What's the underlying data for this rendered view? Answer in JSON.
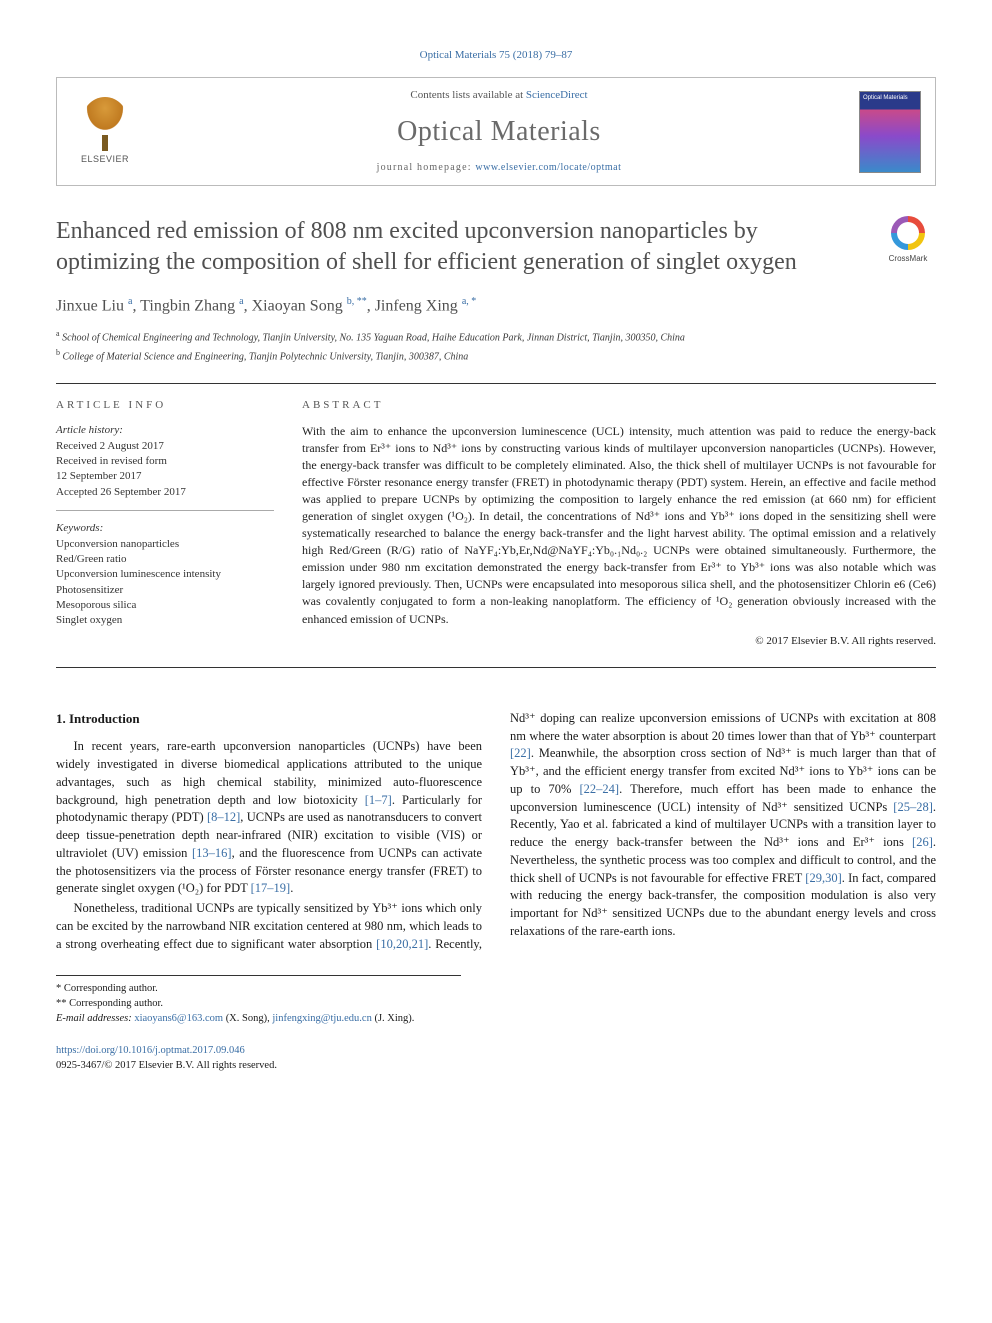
{
  "citation": "Optical Materials 75 (2018) 79–87",
  "masthead": {
    "contents_prefix": "Contents lists available at ",
    "contents_link": "ScienceDirect",
    "journal": "Optical Materials",
    "homepage_prefix": "journal homepage: ",
    "homepage_url": "www.elsevier.com/locate/optmat",
    "publisher": "ELSEVIER"
  },
  "crossmark_label": "CrossMark",
  "title": "Enhanced red emission of 808 nm excited upconversion nanoparticles by optimizing the composition of shell for efficient generation of singlet oxygen",
  "authors_html": "Jinxue Liu <sup>a</sup>, Tingbin Zhang <sup>a</sup>, Xiaoyan Song <sup>b, **</sup>, Jinfeng Xing <sup>a, *</sup>",
  "affiliations": [
    "a School of Chemical Engineering and Technology, Tianjin University, No. 135 Yaguan Road, Haihe Education Park, Jinnan District, Tianjin, 300350, China",
    "b College of Material Science and Engineering, Tianjin Polytechnic University, Tianjin, 300387, China"
  ],
  "info_head": "ARTICLE INFO",
  "abstract_head": "ABSTRACT",
  "history_label": "Article history:",
  "history": [
    "Received 2 August 2017",
    "Received in revised form",
    "12 September 2017",
    "Accepted 26 September 2017"
  ],
  "keywords_label": "Keywords:",
  "keywords": [
    "Upconversion nanoparticles",
    "Red/Green ratio",
    "Upconversion luminescence intensity",
    "Photosensitizer",
    "Mesoporous silica",
    "Singlet oxygen"
  ],
  "abstract": "With the aim to enhance the upconversion luminescence (UCL) intensity, much attention was paid to reduce the energy-back transfer from Er³⁺ ions to Nd³⁺ ions by constructing various kinds of multilayer upconversion nanoparticles (UCNPs). However, the energy-back transfer was difficult to be completely eliminated. Also, the thick shell of multilayer UCNPs is not favourable for effective Förster resonance energy transfer (FRET) in photodynamic therapy (PDT) system. Herein, an effective and facile method was applied to prepare UCNPs by optimizing the composition to largely enhance the red emission (at 660 nm) for efficient generation of singlet oxygen (¹O₂). In detail, the concentrations of Nd³⁺ ions and Yb³⁺ ions doped in the sensitizing shell were systematically researched to balance the energy back-transfer and the light harvest ability. The optimal emission and a relatively high Red/Green (R/G) ratio of NaYF₄:Yb,Er,Nd@NaYF₄:Yb₀.₁Nd₀.₂ UCNPs were obtained simultaneously. Furthermore, the emission under 980 nm excitation demonstrated the energy back-transfer from Er³⁺ to Yb³⁺ ions was also notable which was largely ignored previously. Then, UCNPs were encapsulated into mesoporous silica shell, and the photosensitizer Chlorin e6 (Ce6) was covalently conjugated to form a non-leaking nanoplatform. The efficiency of ¹O₂ generation obviously increased with the enhanced emission of UCNPs.",
  "copyright": "© 2017 Elsevier B.V. All rights reserved.",
  "intro_head": "1. Introduction",
  "intro_p1_pre": "In recent years, rare-earth upconversion nanoparticles (UCNPs) have been widely investigated in diverse biomedical applications attributed to the unique advantages, such as high chemical stability, minimized auto-fluorescence background, high penetration depth and low biotoxicity ",
  "intro_p1_ref1": "[1–7]",
  "intro_p1_mid1": ". Particularly for photodynamic therapy (PDT) ",
  "intro_p1_ref2": "[8–12]",
  "intro_p1_mid2": ", UCNPs are used as nanotransducers to convert deep tissue-penetration depth near-infrared (NIR) excitation to visible (VIS) or ultraviolet (UV) emission ",
  "intro_p1_ref3": "[13–16]",
  "intro_p1_mid3": ", and the fluorescence from UCNPs can activate the photosensitizers via the process of Förster resonance energy transfer (FRET) to generate singlet oxygen (¹O₂) for PDT ",
  "intro_p1_ref4": "[17–19]",
  "intro_p1_post": ".",
  "intro_p2_a": "Nonetheless, traditional UCNPs are typically sensitized by Yb³⁺ ions which only can be excited by the narrowband NIR excitation centered at 980 nm, which leads to a strong overheating effect due to significant water absorption ",
  "intro_p2_r1": "[10,20,21]",
  "intro_p2_b": ". Recently, Nd³⁺ doping can realize upconversion emissions of UCNPs with excitation at 808 nm where the water absorption is about 20 times lower than that of Yb³⁺ counterpart ",
  "intro_p2_r2": "[22]",
  "intro_p2_c": ". Meanwhile, the absorption cross section of Nd³⁺ is much larger than that of Yb³⁺, and the efficient energy transfer from excited Nd³⁺ ions to Yb³⁺ ions can be up to 70% ",
  "intro_p2_r3": "[22–24]",
  "intro_p2_d": ". Therefore, much effort has been made to enhance the upconversion luminescence (UCL) intensity of Nd³⁺ sensitized UCNPs ",
  "intro_p2_r4": "[25–28]",
  "intro_p2_e": ". Recently, Yao et al. fabricated a kind of multilayer UCNPs with a transition layer to reduce the energy back-transfer between the Nd³⁺ ions and Er³⁺ ions ",
  "intro_p2_r5": "[26]",
  "intro_p2_f": ". Nevertheless, the synthetic process was too complex and difficult to control, and the thick shell of UCNPs is not favourable for effective FRET ",
  "intro_p2_r6": "[29,30]",
  "intro_p2_g": ". In fact, compared with reducing the energy back-transfer, the composition modulation is also very important for Nd³⁺ sensitized UCNPs due to the abundant energy levels and cross relaxations of the rare-earth ions.",
  "footnotes": {
    "c1": "* Corresponding author.",
    "c2": "** Corresponding author.",
    "email_label": "E-mail addresses: ",
    "email1": "xiaoyans6@163.com",
    "email1_who": " (X. Song), ",
    "email2": "jinfengxing@tju.edu.cn",
    "email2_who": " (J. Xing)."
  },
  "footer": {
    "doi": "https://doi.org/10.1016/j.optmat.2017.09.046",
    "issn_line": "0925-3467/© 2017 Elsevier B.V. All rights reserved."
  }
}
